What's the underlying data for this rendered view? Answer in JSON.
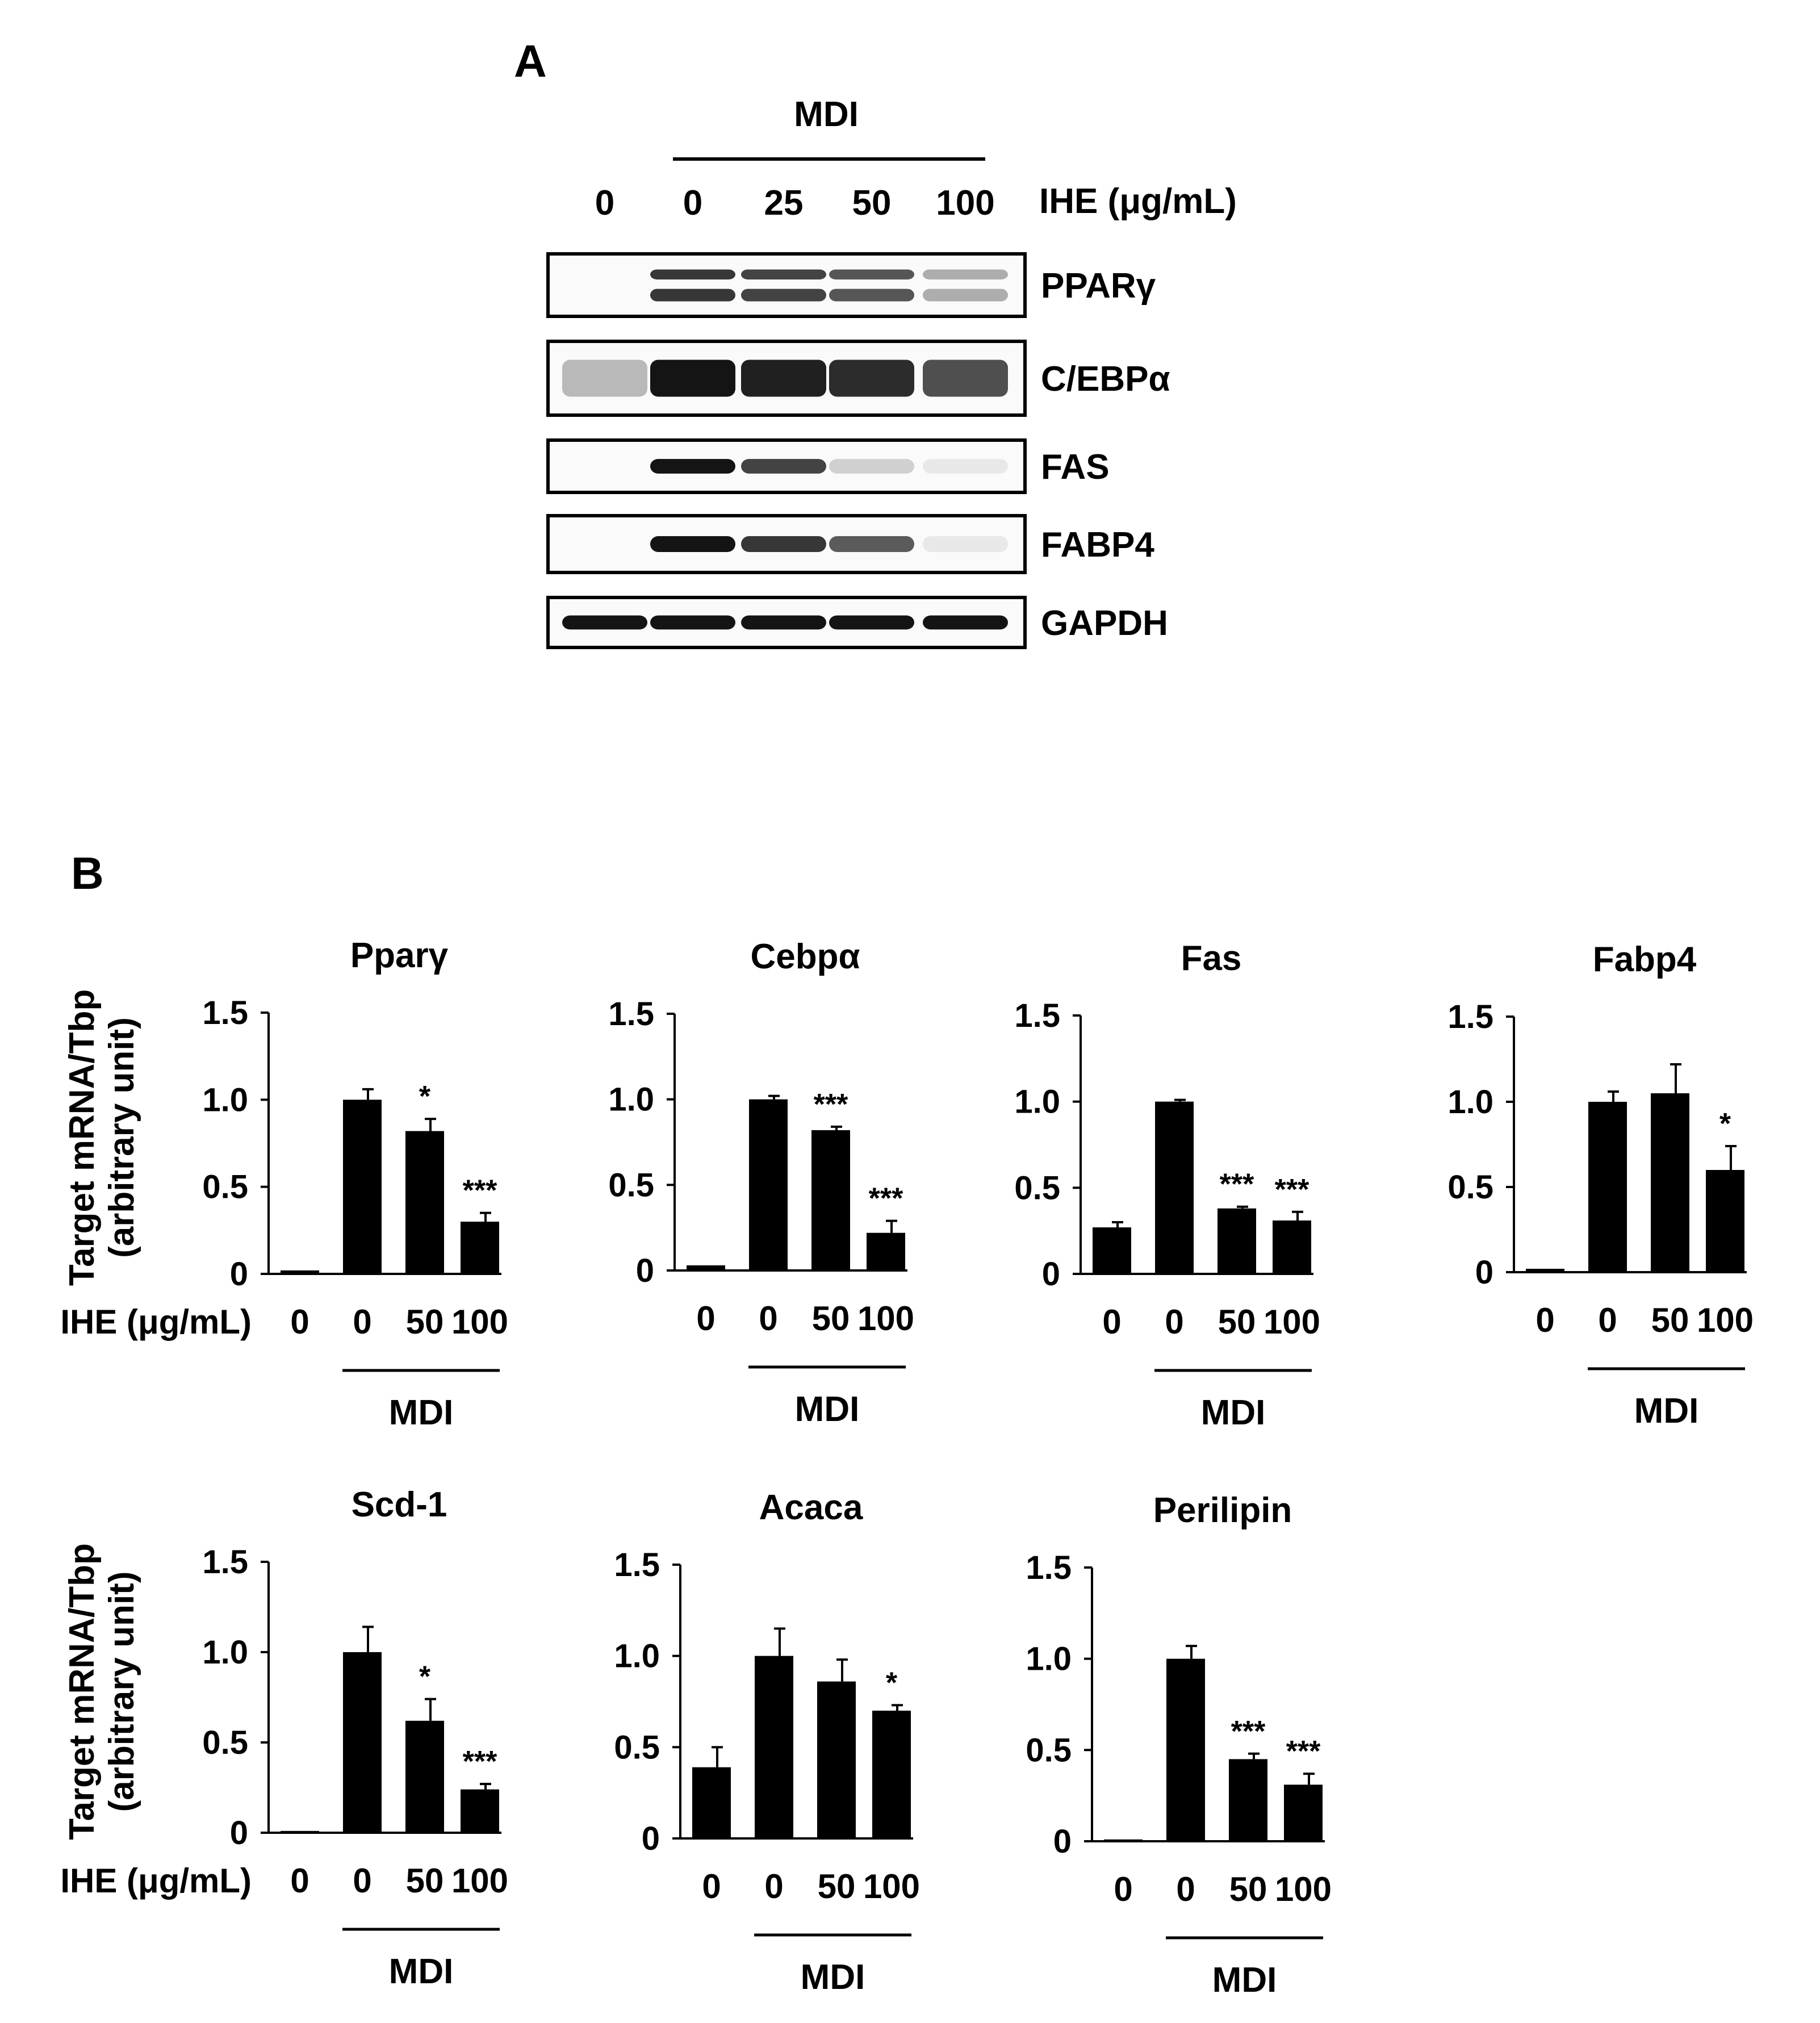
{
  "panel_a": {
    "label": "A",
    "treatment_group": "MDI",
    "ihe_label": "IHE (μg/mL)",
    "lane_labels": [
      "0",
      "0",
      "25",
      "50",
      "100"
    ],
    "blots": [
      {
        "name": "PPARγ",
        "bands": [
          0.0,
          0.85,
          0.8,
          0.72,
          0.35
        ]
      },
      {
        "name": "C/EBPα",
        "bands": [
          0.3,
          1.0,
          0.95,
          0.9,
          0.75
        ]
      },
      {
        "name": "FAS",
        "bands": [
          0.0,
          1.0,
          0.8,
          0.2,
          0.1
        ]
      },
      {
        "name": "FABP4",
        "bands": [
          0.0,
          1.0,
          0.85,
          0.7,
          0.1
        ]
      },
      {
        "name": "GAPDH",
        "bands": [
          1.0,
          1.0,
          1.0,
          1.0,
          1.0
        ]
      }
    ]
  },
  "panel_b": {
    "label": "B",
    "ylabel_line1": "Target mRNA/Tbp",
    "ylabel_line2": "(arbitrary unit)",
    "xlabel_prefix": "IHE (μg/mL)",
    "group_label": "MDI"
  },
  "chart_data": [
    {
      "type": "bar",
      "title": "Pparγ",
      "categories": [
        "0",
        "0",
        "50",
        "100"
      ],
      "values": [
        0.02,
        1.0,
        0.82,
        0.3
      ],
      "errors": [
        0.0,
        0.06,
        0.07,
        0.05
      ],
      "significance": [
        "",
        "",
        "*",
        "***"
      ],
      "ylim": [
        0,
        1.5
      ],
      "yticks": [
        "0",
        "0.5",
        "1.0",
        "1.5"
      ]
    },
    {
      "type": "bar",
      "title": "Cebpα",
      "categories": [
        "0",
        "0",
        "50",
        "100"
      ],
      "values": [
        0.03,
        1.0,
        0.82,
        0.22
      ],
      "errors": [
        0.0,
        0.02,
        0.02,
        0.07
      ],
      "significance": [
        "",
        "",
        "***",
        "***"
      ],
      "ylim": [
        0,
        1.5
      ],
      "yticks": [
        "0",
        "0.5",
        "1.0",
        "1.5"
      ]
    },
    {
      "type": "bar",
      "title": "Fas",
      "categories": [
        "0",
        "0",
        "50",
        "100"
      ],
      "values": [
        0.27,
        1.0,
        0.38,
        0.31
      ],
      "errors": [
        0.03,
        0.01,
        0.01,
        0.05
      ],
      "significance": [
        "",
        "",
        "***",
        "***"
      ],
      "ylim": [
        0,
        1.5
      ],
      "yticks": [
        "0",
        "0.5",
        "1.0",
        "1.5"
      ]
    },
    {
      "type": "bar",
      "title": "Fabp4",
      "categories": [
        "0",
        "0",
        "50",
        "100"
      ],
      "values": [
        0.02,
        1.0,
        1.05,
        0.6
      ],
      "errors": [
        0.0,
        0.06,
        0.17,
        0.14
      ],
      "significance": [
        "",
        "",
        "",
        "*"
      ],
      "ylim": [
        0,
        1.5
      ],
      "yticks": [
        "0",
        "0.5",
        "1.0",
        "1.5"
      ]
    },
    {
      "type": "bar",
      "title": "Scd-1",
      "categories": [
        "0",
        "0",
        "50",
        "100"
      ],
      "values": [
        0.01,
        1.0,
        0.62,
        0.24
      ],
      "errors": [
        0.0,
        0.14,
        0.12,
        0.03
      ],
      "significance": [
        "",
        "",
        "*",
        "***"
      ],
      "ylim": [
        0,
        1.5
      ],
      "yticks": [
        "0",
        "0.5",
        "1.0",
        "1.5"
      ]
    },
    {
      "type": "bar",
      "title": "Acaca",
      "categories": [
        "0",
        "0",
        "50",
        "100"
      ],
      "values": [
        0.39,
        1.0,
        0.86,
        0.7
      ],
      "errors": [
        0.11,
        0.15,
        0.12,
        0.03
      ],
      "significance": [
        "",
        "",
        "",
        "*"
      ],
      "ylim": [
        0,
        1.5
      ],
      "yticks": [
        "0",
        "0.5",
        "1.0",
        "1.5"
      ]
    },
    {
      "type": "bar",
      "title": "Perilipin",
      "categories": [
        "0",
        "0",
        "50",
        "100"
      ],
      "values": [
        0.01,
        1.0,
        0.45,
        0.31
      ],
      "errors": [
        0.0,
        0.07,
        0.03,
        0.06
      ],
      "significance": [
        "",
        "",
        "***",
        "***"
      ],
      "ylim": [
        0,
        1.5
      ],
      "yticks": [
        "0",
        "0.5",
        "1.0",
        "1.5"
      ]
    }
  ]
}
